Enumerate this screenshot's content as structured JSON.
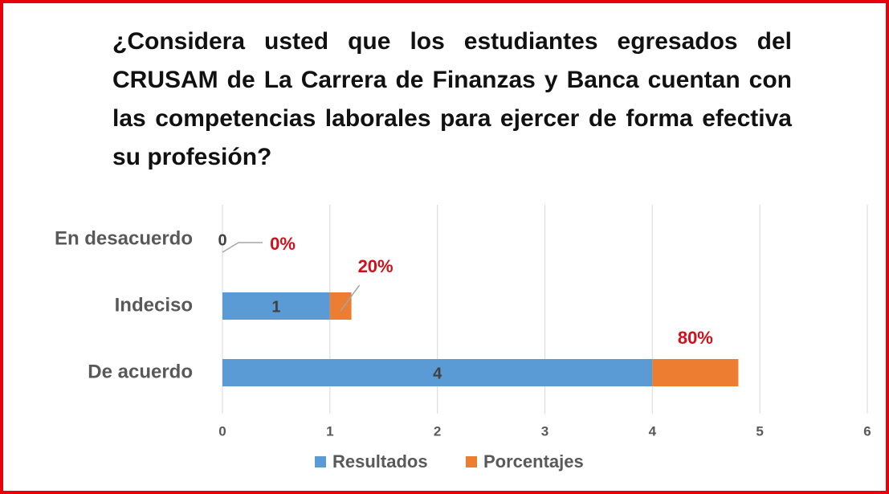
{
  "chart_data": {
    "type": "stacked-bar-horizontal",
    "title": "¿Considera usted que los estudiantes egresados del CRUSAM de La Carrera de Finanzas y Banca cuentan con las competencias laborales para ejercer de forma efectiva su profesión?",
    "categories": [
      "En desacuerdo",
      "Indeciso",
      "De acuerdo"
    ],
    "series": [
      {
        "name": "Resultados",
        "color": "#5b9bd5",
        "values": [
          0,
          1,
          4
        ]
      },
      {
        "name": "Porcentajes",
        "color": "#ed7d31",
        "values": [
          0,
          0.2,
          0.8
        ],
        "value_labels": [
          "0%",
          "20%",
          "80%"
        ]
      }
    ],
    "xlim": [
      0,
      6
    ],
    "xticks": [
      0,
      1,
      2,
      3,
      4,
      5,
      6
    ],
    "grid": true,
    "legend": "bottom"
  }
}
